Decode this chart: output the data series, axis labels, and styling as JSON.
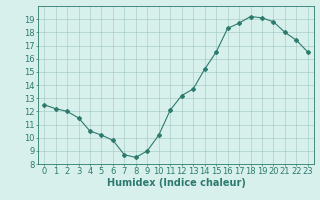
{
  "x": [
    0,
    1,
    2,
    3,
    4,
    5,
    6,
    7,
    8,
    9,
    10,
    11,
    12,
    13,
    14,
    15,
    16,
    17,
    18,
    19,
    20,
    21,
    22,
    23
  ],
  "y": [
    12.5,
    12.2,
    12.0,
    11.5,
    10.5,
    10.2,
    9.8,
    8.7,
    8.5,
    9.0,
    10.2,
    12.1,
    13.2,
    13.7,
    15.2,
    16.5,
    18.3,
    18.7,
    19.2,
    19.1,
    18.8,
    18.0,
    17.4,
    16.5
  ],
  "line_color": "#2d7a6e",
  "marker": "D",
  "marker_size": 2,
  "bg_color": "#d8f0ec",
  "grid_color": "#a0c8c0",
  "tick_color": "#2d7a6e",
  "xlabel": "Humidex (Indice chaleur)",
  "xlim": [
    -0.5,
    23.5
  ],
  "ylim": [
    8,
    20
  ],
  "yticks": [
    8,
    9,
    10,
    11,
    12,
    13,
    14,
    15,
    16,
    17,
    18,
    19
  ],
  "xticks": [
    0,
    1,
    2,
    3,
    4,
    5,
    6,
    7,
    8,
    9,
    10,
    11,
    12,
    13,
    14,
    15,
    16,
    17,
    18,
    19,
    20,
    21,
    22,
    23
  ],
  "font_size": 6,
  "xlabel_fontsize": 7
}
